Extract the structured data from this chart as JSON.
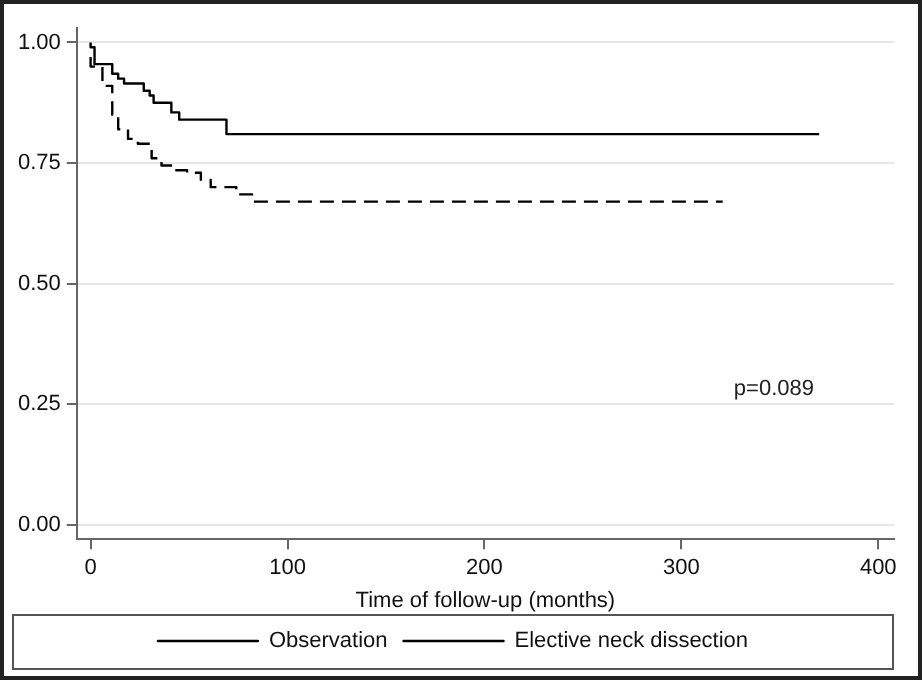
{
  "chart_data": {
    "type": "step",
    "xlabel": "Time of follow-up (months)",
    "xlim": [
      -7,
      408
    ],
    "xticks": [
      0,
      100,
      200,
      300,
      400
    ],
    "ylim": [
      -0.03,
      1.03
    ],
    "yticks": [
      {
        "value": 0,
        "label": "0.00"
      },
      {
        "value": 0.25,
        "label": "0.25"
      },
      {
        "value": 0.5,
        "label": "0.50"
      },
      {
        "value": 0.75,
        "label": "0.75"
      },
      {
        "value": 1,
        "label": "1.00"
      }
    ],
    "grid": "y",
    "legend": "bottom",
    "marker": "none",
    "annotations": [
      "p=0.089"
    ],
    "series": [
      {
        "name": "Observation",
        "color": "#000000",
        "line_style": "solid",
        "x": [
          0,
          2,
          11,
          14,
          17,
          27,
          30,
          32,
          41,
          45,
          69,
          72,
          370
        ],
        "values": [
          1,
          0.99,
          0.955,
          0.935,
          0.925,
          0.915,
          0.9,
          0.89,
          0.875,
          0.855,
          0.84,
          0.81,
          0.81
        ]
      },
      {
        "name": "Elective neck dissection",
        "color": "#000000",
        "line_style": "dashed",
        "x": [
          0,
          6,
          11,
          14,
          19,
          24,
          31,
          36,
          42,
          49,
          56,
          61,
          66,
          74,
          82,
          92,
          321
        ],
        "values": [
          0.97,
          0.95,
          0.91,
          0.85,
          0.82,
          0.8,
          0.79,
          0.76,
          0.745,
          0.735,
          0.73,
          0.715,
          0.7,
          0.7,
          0.685,
          0.67,
          0.67
        ]
      }
    ]
  }
}
